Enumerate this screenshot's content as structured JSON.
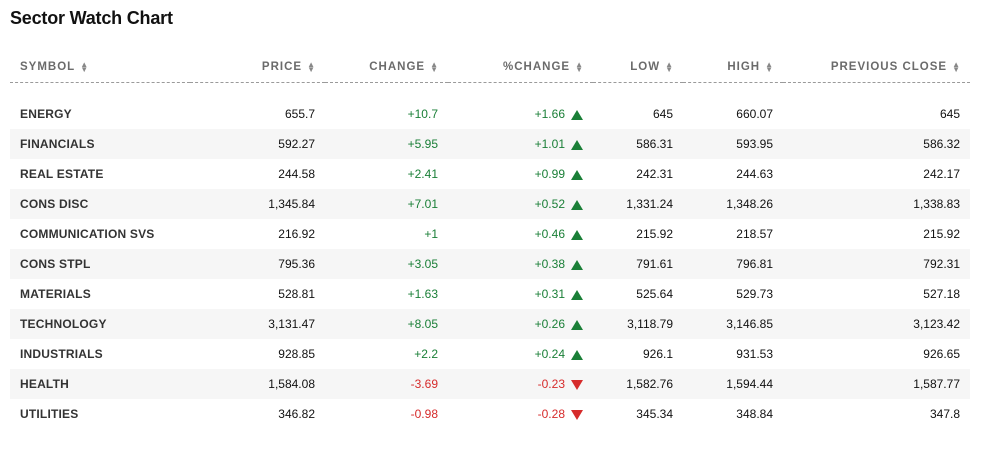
{
  "title": "Sector Watch Chart",
  "columns": {
    "symbol": "SYMBOL",
    "price": "PRICE",
    "change": "CHANGE",
    "pct_change": "%CHANGE",
    "low": "LOW",
    "high": "HIGH",
    "prev_close": "PREVIOUS CLOSE"
  },
  "sort_icon": "sort-up-down-icon",
  "colors": {
    "positive": "#1a7f37",
    "negative": "#d62b2b"
  },
  "rows": [
    {
      "symbol": "ENERGY",
      "price": "655.7",
      "change": "+10.7",
      "pct_change": "+1.66",
      "direction": "up",
      "low": "645",
      "high": "660.07",
      "prev_close": "645"
    },
    {
      "symbol": "FINANCIALS",
      "price": "592.27",
      "change": "+5.95",
      "pct_change": "+1.01",
      "direction": "up",
      "low": "586.31",
      "high": "593.95",
      "prev_close": "586.32"
    },
    {
      "symbol": "REAL ESTATE",
      "price": "244.58",
      "change": "+2.41",
      "pct_change": "+0.99",
      "direction": "up",
      "low": "242.31",
      "high": "244.63",
      "prev_close": "242.17"
    },
    {
      "symbol": "CONS DISC",
      "price": "1,345.84",
      "change": "+7.01",
      "pct_change": "+0.52",
      "direction": "up",
      "low": "1,331.24",
      "high": "1,348.26",
      "prev_close": "1,338.83"
    },
    {
      "symbol": "COMMUNICATION SVS",
      "price": "216.92",
      "change": "+1",
      "pct_change": "+0.46",
      "direction": "up",
      "low": "215.92",
      "high": "218.57",
      "prev_close": "215.92"
    },
    {
      "symbol": "CONS STPL",
      "price": "795.36",
      "change": "+3.05",
      "pct_change": "+0.38",
      "direction": "up",
      "low": "791.61",
      "high": "796.81",
      "prev_close": "792.31"
    },
    {
      "symbol": "MATERIALS",
      "price": "528.81",
      "change": "+1.63",
      "pct_change": "+0.31",
      "direction": "up",
      "low": "525.64",
      "high": "529.73",
      "prev_close": "527.18"
    },
    {
      "symbol": "TECHNOLOGY",
      "price": "3,131.47",
      "change": "+8.05",
      "pct_change": "+0.26",
      "direction": "up",
      "low": "3,118.79",
      "high": "3,146.85",
      "prev_close": "3,123.42"
    },
    {
      "symbol": "INDUSTRIALS",
      "price": "928.85",
      "change": "+2.2",
      "pct_change": "+0.24",
      "direction": "up",
      "low": "926.1",
      "high": "931.53",
      "prev_close": "926.65"
    },
    {
      "symbol": "HEALTH",
      "price": "1,584.08",
      "change": "-3.69",
      "pct_change": "-0.23",
      "direction": "down",
      "low": "1,582.76",
      "high": "1,594.44",
      "prev_close": "1,587.77"
    },
    {
      "symbol": "UTILITIES",
      "price": "346.82",
      "change": "-0.98",
      "pct_change": "-0.28",
      "direction": "down",
      "low": "345.34",
      "high": "348.84",
      "prev_close": "347.8"
    }
  ]
}
